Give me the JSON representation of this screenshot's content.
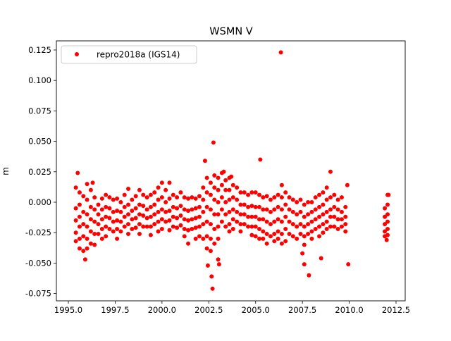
{
  "chart_data": {
    "type": "scatter",
    "title": "WSMN V",
    "xlabel": "",
    "ylabel": "m",
    "xlim": [
      1994.36,
      2012.99
    ],
    "ylim": [
      -0.081,
      0.1325
    ],
    "grid": false,
    "legend_placement": "top-left",
    "xticks": [
      "1995.0",
      "1997.5",
      "2000.0",
      "2002.5",
      "2005.0",
      "2007.5",
      "2010.0",
      "2012.5"
    ],
    "yticks": [
      "-0.075",
      "-0.050",
      "-0.025",
      "0.000",
      "0.025",
      "0.050",
      "0.075",
      "0.100",
      "0.125"
    ],
    "series": [
      {
        "name": "repro2018a (IGS14)",
        "color": "#ff0000",
        "marker": "circle",
        "clusters": [
          {
            "x": 1995.4,
            "y": [
              0.012,
              -0.005,
              -0.015,
              -0.025,
              -0.032
            ]
          },
          {
            "x": 1995.6,
            "y": [
              0.008,
              -0.002,
              -0.012,
              -0.02,
              -0.03,
              -0.038
            ]
          },
          {
            "x": 1995.8,
            "y": [
              0.005,
              -0.008,
              -0.018,
              -0.028,
              -0.04
            ]
          },
          {
            "x": 1996.0,
            "y": [
              0.015,
              0.002,
              -0.01,
              -0.02,
              -0.03,
              -0.038
            ]
          },
          {
            "x": 1996.2,
            "y": [
              0.01,
              -0.004,
              -0.014,
              -0.024,
              -0.034
            ]
          },
          {
            "x": 1996.4,
            "y": [
              0.004,
              -0.006,
              -0.016,
              -0.026,
              -0.035
            ]
          },
          {
            "x": 1996.6,
            "y": [
              -0.002,
              -0.01,
              -0.018,
              -0.026
            ]
          },
          {
            "x": 1996.8,
            "y": [
              0.003,
              -0.006,
              -0.014,
              -0.022,
              -0.03
            ]
          },
          {
            "x": 1997.0,
            "y": [
              0.006,
              -0.004,
              -0.012,
              -0.02,
              -0.028
            ]
          },
          {
            "x": 1997.2,
            "y": [
              0.004,
              -0.005,
              -0.013,
              -0.022
            ]
          },
          {
            "x": 1997.4,
            "y": [
              0.002,
              -0.008,
              -0.016,
              -0.024
            ]
          },
          {
            "x": 1997.6,
            "y": [
              0.003,
              -0.007,
              -0.015,
              -0.022,
              -0.03
            ]
          },
          {
            "x": 1997.8,
            "y": [
              0.0,
              -0.008,
              -0.016,
              -0.024
            ]
          },
          {
            "x": 1998.0,
            "y": [
              0.006,
              -0.004,
              -0.012,
              -0.02
            ]
          },
          {
            "x": 1998.2,
            "y": [
              0.011,
              -0.002,
              -0.01,
              -0.018,
              -0.026
            ]
          },
          {
            "x": 1998.4,
            "y": [
              0.002,
              -0.007,
              -0.014,
              -0.022
            ]
          },
          {
            "x": 1998.6,
            "y": [
              0.005,
              -0.005,
              -0.013,
              -0.021
            ]
          },
          {
            "x": 1998.8,
            "y": [
              0.01,
              -0.002,
              -0.01,
              -0.018,
              -0.026
            ]
          },
          {
            "x": 1999.0,
            "y": [
              0.006,
              -0.003,
              -0.011,
              -0.02
            ]
          },
          {
            "x": 1999.2,
            "y": [
              0.004,
              -0.006,
              -0.013,
              -0.02
            ]
          },
          {
            "x": 1999.4,
            "y": [
              0.006,
              -0.004,
              -0.012,
              -0.02,
              -0.027
            ]
          },
          {
            "x": 1999.6,
            "y": [
              0.008,
              -0.002,
              -0.01,
              -0.018
            ]
          },
          {
            "x": 1999.8,
            "y": [
              0.012,
              0.002,
              -0.008,
              -0.016,
              -0.024
            ]
          },
          {
            "x": 2000.0,
            "y": [
              0.016,
              0.004,
              -0.006,
              -0.014,
              -0.022
            ]
          },
          {
            "x": 2000.2,
            "y": [
              0.01,
              0.0,
              -0.008,
              -0.016
            ]
          },
          {
            "x": 2000.4,
            "y": [
              0.016,
              0.003,
              -0.007,
              -0.015,
              -0.023
            ]
          },
          {
            "x": 2000.6,
            "y": [
              0.006,
              -0.004,
              -0.012,
              -0.02
            ]
          },
          {
            "x": 2000.8,
            "y": [
              0.004,
              -0.005,
              -0.013,
              -0.021
            ]
          },
          {
            "x": 2001.0,
            "y": [
              0.008,
              -0.003,
              -0.011,
              -0.019
            ]
          },
          {
            "x": 2001.2,
            "y": [
              0.004,
              -0.006,
              -0.014,
              -0.022,
              -0.028
            ]
          },
          {
            "x": 2001.4,
            "y": [
              0.003,
              -0.007,
              -0.015,
              -0.023,
              -0.034
            ]
          },
          {
            "x": 2001.6,
            "y": [
              0.004,
              -0.006,
              -0.014,
              -0.022
            ]
          },
          {
            "x": 2001.8,
            "y": [
              0.003,
              -0.005,
              -0.013,
              -0.021,
              -0.03
            ]
          },
          {
            "x": 2002.0,
            "y": [
              0.005,
              -0.004,
              -0.012,
              -0.02,
              -0.028
            ]
          },
          {
            "x": 2002.2,
            "y": [
              0.012,
              0.002,
              -0.008,
              -0.018,
              -0.03
            ]
          },
          {
            "x": 2002.4,
            "y": [
              0.02,
              0.008,
              -0.004,
              -0.016,
              -0.028,
              -0.038
            ]
          },
          {
            "x": 2002.6,
            "y": [
              0.016,
              0.006,
              -0.006,
              -0.018,
              -0.03,
              -0.04
            ]
          },
          {
            "x": 2002.8,
            "y": [
              0.022,
              0.012,
              0.002,
              -0.01,
              -0.022,
              -0.034
            ]
          },
          {
            "x": 2003.0,
            "y": [
              0.02,
              0.01,
              0.0,
              -0.01,
              -0.02,
              -0.03
            ]
          },
          {
            "x": 2003.2,
            "y": [
              0.024,
              0.014,
              0.004,
              -0.006,
              -0.016
            ]
          },
          {
            "x": 2003.4,
            "y": [
              0.018,
              0.01,
              0.0,
              -0.01,
              -0.02
            ]
          },
          {
            "x": 2003.6,
            "y": [
              0.02,
              0.01,
              0.002,
              -0.008,
              -0.018,
              -0.024
            ]
          },
          {
            "x": 2003.8,
            "y": [
              0.014,
              0.004,
              -0.006,
              -0.014,
              -0.022
            ]
          },
          {
            "x": 2004.0,
            "y": [
              0.012,
              0.002,
              -0.008,
              -0.016
            ]
          },
          {
            "x": 2004.2,
            "y": [
              0.008,
              -0.002,
              -0.01,
              -0.018,
              -0.024
            ]
          },
          {
            "x": 2004.4,
            "y": [
              0.008,
              -0.002,
              -0.01,
              -0.018
            ]
          },
          {
            "x": 2004.6,
            "y": [
              0.006,
              -0.004,
              -0.012,
              -0.02
            ]
          },
          {
            "x": 2004.8,
            "y": [
              0.008,
              -0.003,
              -0.012,
              -0.02,
              -0.027
            ]
          },
          {
            "x": 2005.0,
            "y": [
              0.008,
              -0.004,
              -0.012,
              -0.02,
              -0.028
            ]
          },
          {
            "x": 2005.2,
            "y": [
              0.006,
              -0.004,
              -0.014,
              -0.022,
              -0.03
            ]
          },
          {
            "x": 2005.4,
            "y": [
              0.004,
              -0.006,
              -0.014,
              -0.024,
              -0.03
            ]
          },
          {
            "x": 2005.6,
            "y": [
              0.005,
              -0.006,
              -0.016,
              -0.026,
              -0.034
            ]
          },
          {
            "x": 2005.8,
            "y": [
              0.002,
              -0.008,
              -0.018,
              -0.028
            ]
          },
          {
            "x": 2006.0,
            "y": [
              0.004,
              -0.006,
              -0.016,
              -0.026,
              -0.032
            ]
          },
          {
            "x": 2006.2,
            "y": [
              0.006,
              -0.004,
              -0.014,
              -0.024,
              -0.03
            ]
          },
          {
            "x": 2006.4,
            "y": [
              0.014,
              0.004,
              -0.006,
              -0.016,
              -0.026,
              -0.034
            ]
          },
          {
            "x": 2006.6,
            "y": [
              0.008,
              -0.002,
              -0.012,
              -0.022,
              -0.032
            ]
          },
          {
            "x": 2006.8,
            "y": [
              0.004,
              -0.006,
              -0.016,
              -0.026
            ]
          },
          {
            "x": 2007.0,
            "y": [
              0.002,
              -0.008,
              -0.018,
              -0.028
            ]
          },
          {
            "x": 2007.2,
            "y": [
              0.0,
              -0.01,
              -0.02,
              -0.03
            ]
          },
          {
            "x": 2007.4,
            "y": [
              0.002,
              -0.008,
              -0.018,
              -0.026
            ]
          },
          {
            "x": 2007.6,
            "y": [
              -0.002,
              -0.012,
              -0.02,
              -0.028,
              -0.035
            ]
          },
          {
            "x": 2007.8,
            "y": [
              0.0,
              -0.01,
              -0.018,
              -0.026
            ]
          },
          {
            "x": 2008.0,
            "y": [
              0.0,
              -0.008,
              -0.016,
              -0.024,
              -0.03
            ]
          },
          {
            "x": 2008.2,
            "y": [
              0.004,
              -0.006,
              -0.014,
              -0.022
            ]
          },
          {
            "x": 2008.4,
            "y": [
              0.006,
              -0.004,
              -0.012,
              -0.02,
              -0.028
            ]
          },
          {
            "x": 2008.6,
            "y": [
              0.008,
              -0.002,
              -0.01,
              -0.018,
              -0.025
            ]
          },
          {
            "x": 2008.8,
            "y": [
              0.012,
              0.002,
              -0.008,
              -0.016,
              -0.022
            ]
          },
          {
            "x": 2009.0,
            "y": [
              0.004,
              -0.006,
              -0.012,
              -0.02
            ]
          },
          {
            "x": 2009.2,
            "y": [
              0.006,
              -0.004,
              -0.012,
              -0.02
            ]
          },
          {
            "x": 2009.4,
            "y": [
              0.002,
              -0.006,
              -0.014,
              -0.022
            ]
          },
          {
            "x": 2009.6,
            "y": [
              0.004,
              -0.008,
              -0.014,
              -0.02
            ]
          },
          {
            "x": 2009.8,
            "y": [
              -0.004,
              -0.012,
              -0.018,
              -0.024
            ]
          },
          {
            "x": 2011.9,
            "y": [
              -0.005,
              -0.012,
              -0.018,
              -0.024,
              -0.028
            ]
          },
          {
            "x": 2012.05,
            "y": [
              0.006,
              -0.002,
              -0.01,
              -0.016,
              -0.022,
              -0.027
            ]
          }
        ],
        "outliers": [
          [
            2006.35,
            0.123
          ],
          [
            2002.75,
            0.049
          ],
          [
            2005.25,
            0.035
          ],
          [
            2002.3,
            0.034
          ],
          [
            2002.7,
            -0.071
          ],
          [
            2002.65,
            -0.061
          ],
          [
            2002.45,
            -0.052
          ],
          [
            2003.0,
            -0.047
          ],
          [
            2003.05,
            -0.051
          ],
          [
            2007.85,
            -0.06
          ],
          [
            2008.5,
            -0.046
          ],
          [
            2009.95,
            -0.051
          ],
          [
            2007.5,
            -0.042
          ],
          [
            2007.6,
            -0.051
          ],
          [
            1995.5,
            0.024
          ],
          [
            1995.9,
            -0.047
          ],
          [
            2009.9,
            0.014
          ],
          [
            2009.0,
            0.025
          ],
          [
            2003.3,
            0.025
          ],
          [
            2003.7,
            0.021
          ],
          [
            1996.3,
            0.016
          ],
          [
            2012.1,
            0.006
          ],
          [
            2012.0,
            -0.031
          ]
        ]
      }
    ]
  }
}
